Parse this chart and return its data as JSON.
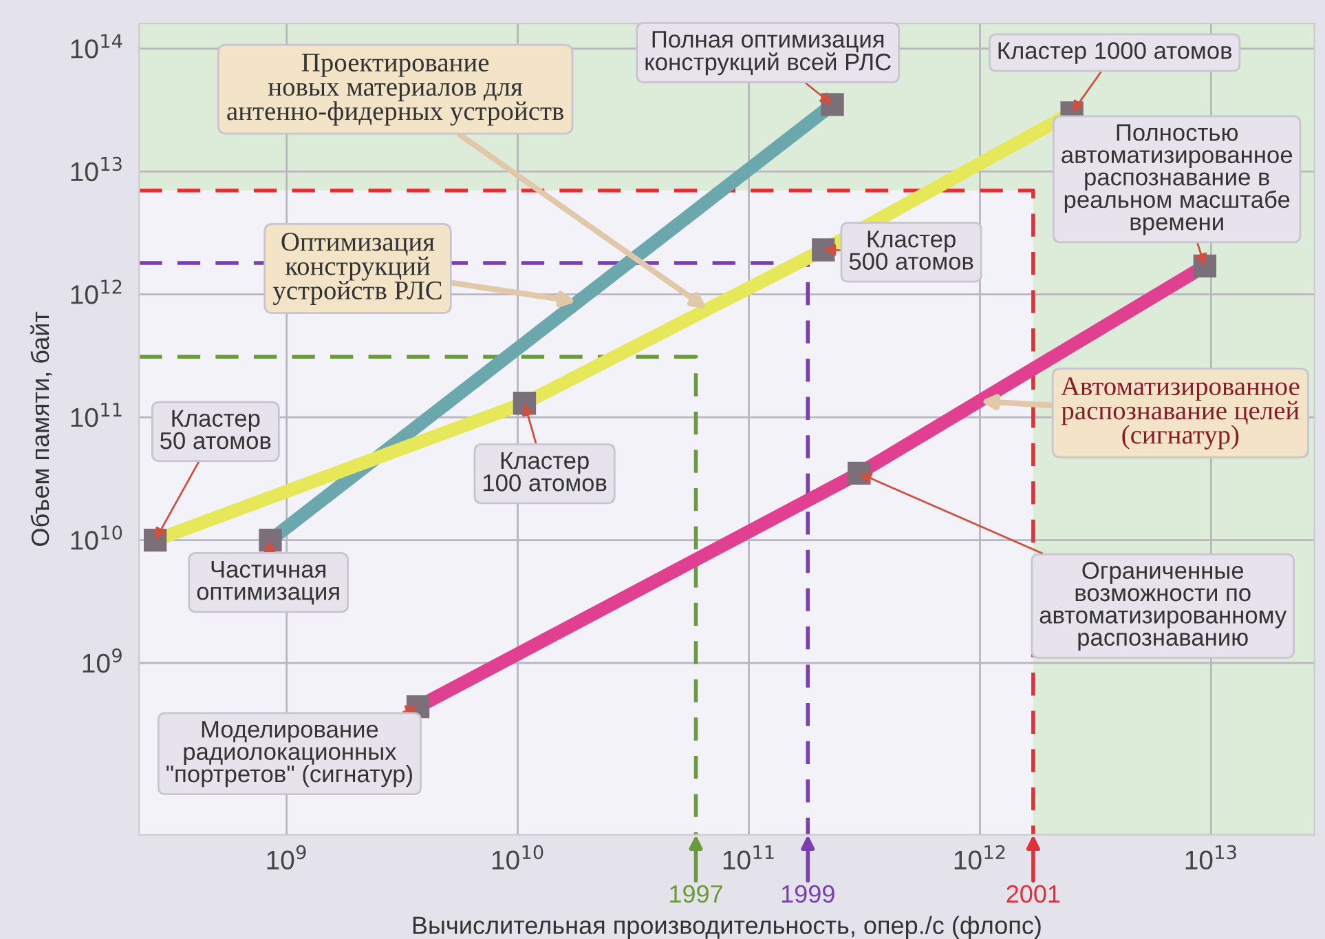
{
  "chart_data": {
    "type": "line",
    "xlabel": "Вычислительная производительность, опер./с (флопс)",
    "ylabel": "Объем памяти, байт",
    "log": "xy",
    "xlim": [
      230000000.0,
      28000000000000.0
    ],
    "ylim": [
      40000000.0,
      160000000000000.0
    ],
    "xticks": [
      {
        "value": 1000000000.0,
        "label": "10$^{9}$"
      },
      {
        "value": 10000000000.0,
        "label": "10$^{10}$"
      },
      {
        "value": 100000000000.0,
        "label": "10$^{11}$"
      },
      {
        "value": 1000000000000.0,
        "label": "10$^{12}$"
      },
      {
        "value": 10000000000000.0,
        "label": "10$^{13}$"
      }
    ],
    "yticks": [
      {
        "value": 1000000000.0,
        "label": "10$^{9}$"
      },
      {
        "value": 10000000000.0,
        "label": "10$^{10}$"
      },
      {
        "value": 100000000000.0,
        "label": "10$^{11}$"
      },
      {
        "value": 1000000000000.0,
        "label": "10$^{12}$"
      },
      {
        "value": 10000000000000.0,
        "label": "10$^{13}$"
      },
      {
        "value": 100000000000000.0,
        "label": "10$^{14}$"
      }
    ],
    "grid": true,
    "legend": "bottom",
    "bands": [
      {
        "axis": "y",
        "from": 7000000000000.0,
        "to": 160000000000000.0,
        "color": "#dcecd9"
      },
      {
        "axis": "x",
        "from": 1700000000000.0,
        "to": 28000000000000.0,
        "color": "#dcecd9"
      }
    ],
    "series": [
      {
        "color": "#6a9a3a",
        "line_style": "dashed",
        "marker": "none",
        "name": "1997",
        "x": [
          230000000.0,
          59000000000.0,
          59000000000.0
        ],
        "values": [
          310000000000.0,
          310000000000.0,
          40000000.0
        ]
      },
      {
        "color": "#7a3fb0",
        "line_style": "dashed",
        "marker": "none",
        "name": "1999",
        "x": [
          230000000.0,
          180000000000.0,
          180000000000.0
        ],
        "values": [
          1800000000000.0,
          1800000000000.0,
          40000000.0
        ]
      },
      {
        "color": "#e0303a",
        "line_style": "dashed",
        "marker": "none",
        "name": "2001",
        "x": [
          230000000.0,
          1700000000000.0,
          1700000000000.0
        ],
        "values": [
          7000000000000.0,
          7000000000000.0,
          40000000.0
        ]
      },
      {
        "color": "#6aa8ad",
        "line_style": "solid",
        "marker": "square",
        "x": [
          850000000.0,
          230000000000.0
        ],
        "values": [
          10000000000.0,
          35000000000000.0
        ]
      },
      {
        "color": "#e6e85a",
        "line_style": "solid",
        "marker": "square",
        "x": [
          270000000.0,
          10700000000.0,
          210000000000.0,
          2500000000000.0
        ],
        "values": [
          10000000000.0,
          130000000000.0,
          2300000000000.0,
          30000000000000.0
        ]
      },
      {
        "color": "#e0408f",
        "line_style": "solid",
        "marker": "square",
        "x": [
          3700000000.0,
          300000000000.0,
          9400000000000.0
        ],
        "values": [
          440000000.0,
          35000000000.0,
          1700000000000.0
        ]
      }
    ],
    "annotations": [
      {
        "text": "Проектирование\nновых материалов для\nантенно-фидерных устройств",
        "x": 66000000000.0,
        "y": 760000000000.0
      },
      {
        "text": "Оптимизация\nконструкций\nустройств РЛС",
        "x": 18000000000.0,
        "y": 870000000000.0
      },
      {
        "text": "Полная оптимизация\nконструкций всей РЛС",
        "x": 230000000000.0,
        "y": 35000000000000.0
      },
      {
        "text": "Кластер 1000 атомов",
        "x": 2500000000000.0,
        "y": 30000000000000.0
      },
      {
        "text": "Полностью\nавтоматизированное\nраспознавание в\nреальном масштабе\nвремени",
        "x": 9400000000000.0,
        "y": 1700000000000.0
      },
      {
        "text": "Кластер\n500 атомов",
        "x": 210000000000.0,
        "y": 2300000000000.0
      },
      {
        "text": "Автоматизированное\nраспознавание целей\n(сигнатур)",
        "x": 1000000000000.0,
        "y": 135000000000.0
      },
      {
        "text": "Кластер\n100 атомов",
        "x": 10700000000.0,
        "y": 130000000000.0
      },
      {
        "text": "Кластер\n50 атомов",
        "x": 270000000.0,
        "y": 10000000000.0
      },
      {
        "text": "Частичная\nоптимизация",
        "x": 850000000.0,
        "y": 10000000000.0
      },
      {
        "text": "Ограниченные\nвозможности по\nавтоматизированному\nраспознаванию",
        "x": 300000000000.0,
        "y": 35000000000.0
      },
      {
        "text": "Моделирование\nрадиолокационных\n\"портретов\" (сигнатур)",
        "x": 3700000000.0,
        "y": 440000000.0
      }
    ]
  }
}
